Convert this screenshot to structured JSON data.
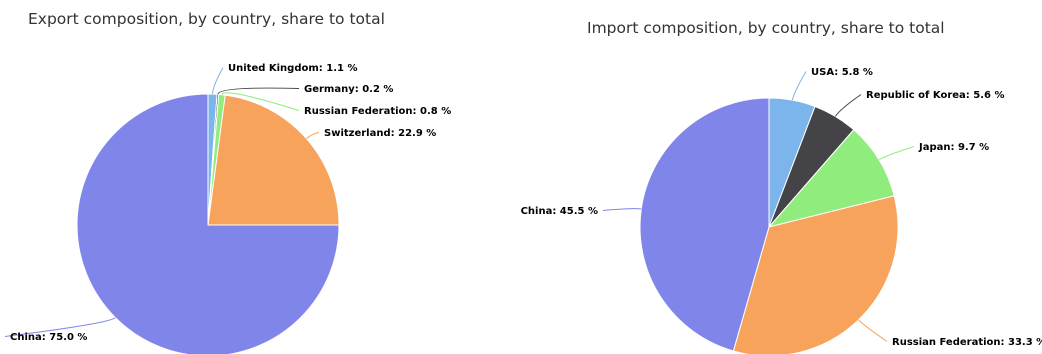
{
  "charts": [
    {
      "id": "export",
      "title": "Export composition, by country, share to total",
      "chart_data": {
        "type": "pie",
        "title": "Export composition, by country, share to total",
        "unit": "%",
        "slices": [
          {
            "label": "United Kingdom",
            "value": 1.1,
            "color": "#7cb5ec"
          },
          {
            "label": "Germany",
            "value": 0.2,
            "color": "#434348"
          },
          {
            "label": "Russian Federation",
            "value": 0.8,
            "color": "#90ed7d"
          },
          {
            "label": "Switzerland",
            "value": 22.9,
            "color": "#f7a35c"
          },
          {
            "label": "China",
            "value": 75.0,
            "color": "#8085e9"
          }
        ]
      }
    },
    {
      "id": "import",
      "title": "Import composition, by country, share to total",
      "chart_data": {
        "type": "pie",
        "title": "Import composition, by country, share to total",
        "unit": "%",
        "slices": [
          {
            "label": "USA",
            "value": 5.8,
            "color": "#7cb5ec"
          },
          {
            "label": "Republic of Korea",
            "value": 5.6,
            "color": "#434348"
          },
          {
            "label": "Japan",
            "value": 9.7,
            "color": "#90ed7d"
          },
          {
            "label": "Russian Federation",
            "value": 33.3,
            "color": "#f7a35c"
          },
          {
            "label": "China",
            "value": 45.5,
            "color": "#8085e9"
          }
        ]
      }
    }
  ]
}
